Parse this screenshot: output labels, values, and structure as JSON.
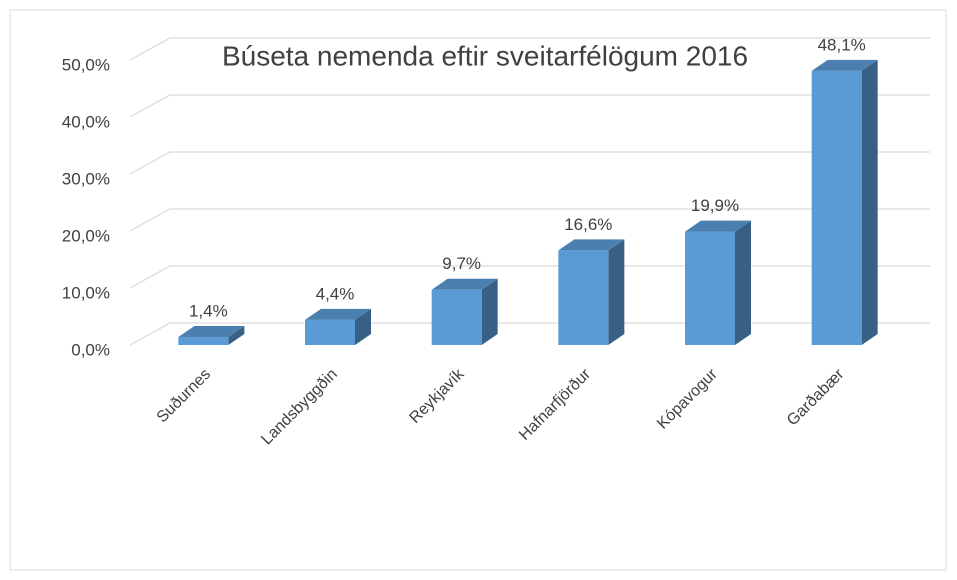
{
  "chart_data": {
    "type": "bar3d",
    "title": "Búseta nemenda eftir sveitarfélögum 2016",
    "categories": [
      "Suðurnes",
      "Landsbyggðin",
      "Reykjavík",
      "Hafnarfjörður",
      "Kópavogur",
      "Garðabær"
    ],
    "values": [
      1.4,
      4.4,
      9.7,
      16.6,
      19.9,
      48.1
    ],
    "value_labels": [
      "1,4%",
      "4,4%",
      "9,7%",
      "16,6%",
      "19,9%",
      "48,1%"
    ],
    "color": "#5b9bd5",
    "ylim": [
      0,
      50
    ],
    "yticks": [
      {
        "value": 0,
        "label": "0,0%"
      },
      {
        "value": 10,
        "label": "10,0%"
      },
      {
        "value": 20,
        "label": "20,0%"
      },
      {
        "value": 30,
        "label": "30,0%"
      },
      {
        "value": 40,
        "label": "40,0%"
      },
      {
        "value": 50,
        "label": "50,0%"
      }
    ],
    "grid": true
  }
}
